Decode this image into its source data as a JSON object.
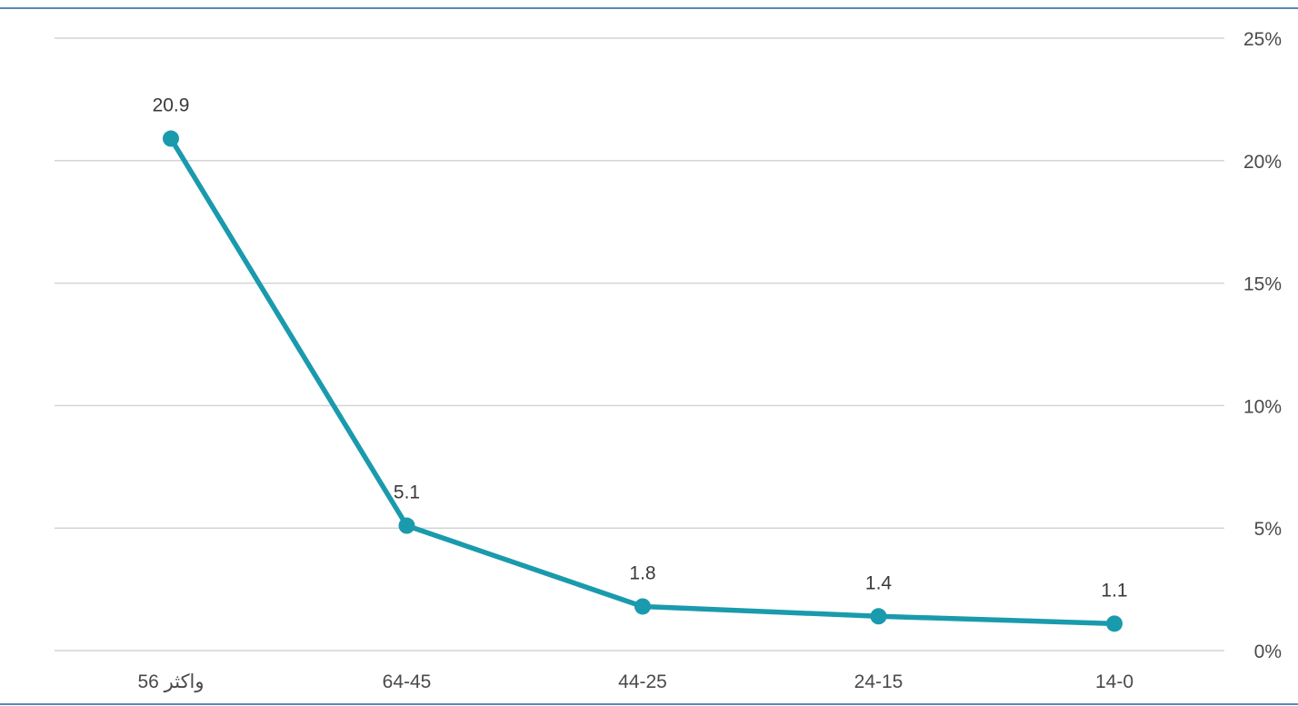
{
  "chart_data": {
    "type": "line",
    "categories": [
      "56 واكثر",
      "64-45",
      "44-25",
      "24-15",
      "14-0"
    ],
    "series": [
      {
        "values": [
          20.9,
          5.1,
          1.8,
          1.4,
          1.1
        ]
      }
    ],
    "data_labels": [
      "20.9",
      "5.1",
      "1.8",
      "1.4",
      "1.1"
    ],
    "y_ticks": [
      {
        "value": 25,
        "label": "25%"
      },
      {
        "value": 20,
        "label": "20%"
      },
      {
        "value": 15,
        "label": "15%"
      },
      {
        "value": 10,
        "label": "10%"
      },
      {
        "value": 5,
        "label": "5%"
      },
      {
        "value": 0,
        "label": "0%"
      }
    ],
    "ylim": [
      0,
      25
    ],
    "y_axis_side": "right",
    "grid": true,
    "legend": false,
    "title": "",
    "xlabel": "",
    "ylabel": "",
    "colors": {
      "series": "#1a9aad",
      "grid": "#d4d4d4",
      "frame": "#5b87b8",
      "text": "#4a4a4a"
    }
  }
}
